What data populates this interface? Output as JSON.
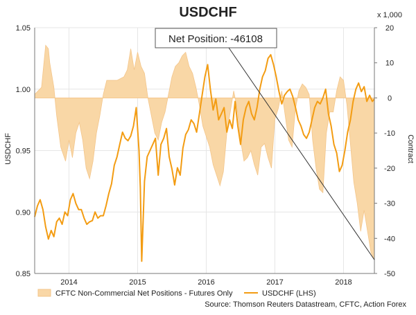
{
  "colors": {
    "area_fill": "#f9d7a6",
    "area_stroke": "#f3c58a",
    "line": "#f39c12",
    "grid": "#e6e6e6",
    "axis": "#777777"
  },
  "chart_data": {
    "type": "line",
    "title": "USDCHF",
    "ylabel_left": "USDCHF",
    "ylabel_right": "Contract",
    "right_scale_label": "x 1,000",
    "ylim_left": [
      0.85,
      1.05
    ],
    "ylim_right": [
      -50,
      20
    ],
    "yticks_left": [
      "0.85",
      "0.90",
      "0.95",
      "1.00",
      "1.05"
    ],
    "yticks_right": [
      "-50",
      "-40",
      "-30",
      "-20",
      "-10",
      "0",
      "10",
      "20"
    ],
    "xlim": [
      2013.5,
      2018.45
    ],
    "xticks": [
      {
        "label": "2014",
        "x": 2014.0
      },
      {
        "label": "2015",
        "x": 2015.0
      },
      {
        "label": "2016",
        "x": 2016.0
      },
      {
        "label": "2017",
        "x": 2017.0
      },
      {
        "label": "2018",
        "x": 2018.0
      }
    ],
    "grid": true,
    "legend_position": "bottom",
    "annotation": {
      "text": "Net Position: -46108",
      "x": 2018.45,
      "y_right": -46.1
    },
    "source": "Source: Thomson Reuters Datastream, CFTC, Action Forex",
    "series": [
      {
        "name": "CFTC Non-Commercial Net Positions - Futures Only",
        "axis": "right",
        "kind": "area",
        "x": [
          2013.5,
          2013.55,
          2013.6,
          2013.66,
          2013.7,
          2013.72,
          2013.78,
          2013.82,
          2013.88,
          2013.95,
          2014.0,
          2014.05,
          2014.1,
          2014.15,
          2014.2,
          2014.25,
          2014.3,
          2014.35,
          2014.4,
          2014.45,
          2014.5,
          2014.55,
          2014.6,
          2014.7,
          2014.8,
          2014.85,
          2014.9,
          2014.95,
          2015.0,
          2015.05,
          2015.1,
          2015.15,
          2015.2,
          2015.25,
          2015.3,
          2015.35,
          2015.4,
          2015.45,
          2015.5,
          2015.55,
          2015.6,
          2015.65,
          2015.7,
          2015.75,
          2015.8,
          2015.85,
          2015.9,
          2015.95,
          2016.0,
          2016.05,
          2016.1,
          2016.15,
          2016.2,
          2016.25,
          2016.3,
          2016.35,
          2016.4,
          2016.45,
          2016.5,
          2016.55,
          2016.6,
          2016.65,
          2016.7,
          2016.75,
          2016.8,
          2016.85,
          2016.9,
          2016.95,
          2017.0,
          2017.05,
          2017.1,
          2017.15,
          2017.2,
          2017.25,
          2017.3,
          2017.35,
          2017.4,
          2017.45,
          2017.5,
          2017.55,
          2017.6,
          2017.65,
          2017.7,
          2017.75,
          2017.8,
          2017.85,
          2017.9,
          2017.95,
          2018.0,
          2018.05,
          2018.1,
          2018.15,
          2018.2,
          2018.25,
          2018.3,
          2018.35,
          2018.4,
          2018.45
        ],
        "values": [
          1,
          2,
          3,
          15,
          14,
          10,
          3,
          -5,
          -14,
          -18,
          -12,
          -17,
          -10,
          -7,
          -12,
          -20,
          -23,
          -18,
          -10,
          -5,
          1,
          5,
          5,
          5,
          6,
          8,
          14,
          8,
          13,
          9,
          7,
          0,
          -5,
          -10,
          -12,
          -7,
          -4,
          1,
          6,
          9,
          10,
          12,
          13,
          9,
          7,
          3,
          -2,
          -8,
          -11,
          -14,
          -19,
          -22,
          -25,
          -21,
          -10,
          -4,
          2,
          -3,
          -12,
          -18,
          -17,
          -15,
          -19,
          -22,
          -14,
          -13,
          -17,
          -20,
          -6,
          -3,
          2,
          -5,
          -12,
          -14,
          -3,
          2,
          4,
          3,
          1,
          -12,
          -20,
          -26,
          -27,
          -10,
          -4,
          -4,
          2,
          6,
          5,
          -2,
          -13,
          -24,
          -30,
          -38,
          -32,
          -38,
          -44,
          -46.1
        ]
      },
      {
        "name": "USDCHF (LHS)",
        "axis": "left",
        "kind": "line",
        "x": [
          2013.5,
          2013.54,
          2013.58,
          2013.62,
          2013.66,
          2013.7,
          2013.74,
          2013.78,
          2013.82,
          2013.86,
          2013.9,
          2013.94,
          2013.98,
          2014.02,
          2014.06,
          2014.1,
          2014.14,
          2014.18,
          2014.22,
          2014.26,
          2014.3,
          2014.34,
          2014.38,
          2014.42,
          2014.46,
          2014.5,
          2014.54,
          2014.58,
          2014.62,
          2014.66,
          2014.7,
          2014.74,
          2014.78,
          2014.82,
          2014.86,
          2014.9,
          2014.94,
          2014.98,
          2015.02,
          2015.04,
          2015.06,
          2015.1,
          2015.14,
          2015.18,
          2015.22,
          2015.26,
          2015.3,
          2015.34,
          2015.38,
          2015.42,
          2015.46,
          2015.5,
          2015.54,
          2015.58,
          2015.62,
          2015.66,
          2015.7,
          2015.74,
          2015.78,
          2015.82,
          2015.86,
          2015.9,
          2015.94,
          2015.98,
          2016.02,
          2016.06,
          2016.1,
          2016.14,
          2016.18,
          2016.22,
          2016.26,
          2016.3,
          2016.34,
          2016.38,
          2016.42,
          2016.46,
          2016.5,
          2016.54,
          2016.58,
          2016.62,
          2016.66,
          2016.7,
          2016.74,
          2016.78,
          2016.82,
          2016.86,
          2016.9,
          2016.94,
          2016.98,
          2017.02,
          2017.06,
          2017.1,
          2017.14,
          2017.18,
          2017.22,
          2017.26,
          2017.3,
          2017.34,
          2017.38,
          2017.42,
          2017.46,
          2017.5,
          2017.54,
          2017.58,
          2017.62,
          2017.66,
          2017.7,
          2017.74,
          2017.78,
          2017.82,
          2017.86,
          2017.9,
          2017.94,
          2017.98,
          2018.02,
          2018.06,
          2018.1,
          2018.14,
          2018.18,
          2018.22,
          2018.26,
          2018.3,
          2018.34,
          2018.38,
          2018.42,
          2018.45
        ],
        "values": [
          0.896,
          0.905,
          0.91,
          0.902,
          0.888,
          0.878,
          0.885,
          0.88,
          0.892,
          0.895,
          0.89,
          0.9,
          0.897,
          0.91,
          0.915,
          0.907,
          0.902,
          0.902,
          0.895,
          0.89,
          0.892,
          0.893,
          0.9,
          0.895,
          0.897,
          0.897,
          0.905,
          0.915,
          0.923,
          0.938,
          0.945,
          0.955,
          0.965,
          0.96,
          0.958,
          0.962,
          0.97,
          0.985,
          0.95,
          0.92,
          0.86,
          0.925,
          0.945,
          0.95,
          0.955,
          0.96,
          0.93,
          0.955,
          0.96,
          0.968,
          0.945,
          0.935,
          0.922,
          0.936,
          0.93,
          0.952,
          0.963,
          0.967,
          0.975,
          0.972,
          0.965,
          0.98,
          0.995,
          1.01,
          1.02,
          1.0,
          0.983,
          0.992,
          0.975,
          0.98,
          0.985,
          0.965,
          0.975,
          0.968,
          0.99,
          0.97,
          0.955,
          0.975,
          0.985,
          0.99,
          0.98,
          0.975,
          0.985,
          1.0,
          1.01,
          1.015,
          1.025,
          1.028,
          1.02,
          1.01,
          0.998,
          0.988,
          0.995,
          0.998,
          1.0,
          0.994,
          0.985,
          0.975,
          0.97,
          0.963,
          0.96,
          0.965,
          0.975,
          0.985,
          0.99,
          0.988,
          0.993,
          1.0,
          0.98,
          0.97,
          0.955,
          0.948,
          0.933,
          0.938,
          0.95,
          0.965,
          0.975,
          0.99,
          1.0,
          1.005,
          0.998,
          1.002,
          0.99,
          0.995,
          0.99,
          0.992
        ]
      }
    ]
  }
}
